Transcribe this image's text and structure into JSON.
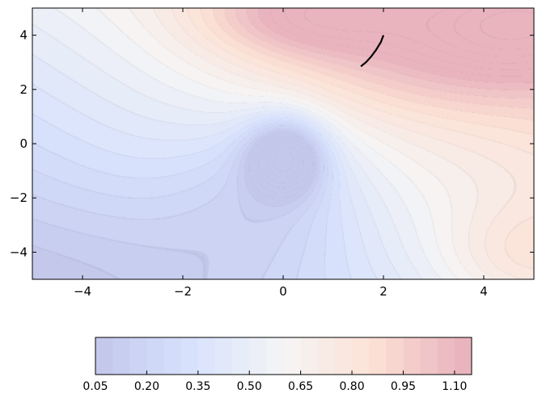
{
  "chart_data": {
    "type": "heatmap",
    "subtype": "filled-contour",
    "colormap": "coolwarm",
    "title": "",
    "xlabel": "",
    "ylabel": "",
    "xlim": [
      -5,
      5
    ],
    "ylim": [
      -5,
      5
    ],
    "x_ticks": [
      {
        "value": -4,
        "label": "−4"
      },
      {
        "value": -2,
        "label": "−2"
      },
      {
        "value": 0,
        "label": "0"
      },
      {
        "value": 2,
        "label": "2"
      },
      {
        "value": 4,
        "label": "4"
      }
    ],
    "y_ticks": [
      {
        "value": 4,
        "label": "4"
      },
      {
        "value": 2,
        "label": "2"
      },
      {
        "value": 0,
        "label": "0"
      },
      {
        "value": -2,
        "label": "−2"
      },
      {
        "value": -4,
        "label": "−4"
      }
    ],
    "grid": false,
    "surface": {
      "description_values": "smooth surface with minimum ~0.05 near (0,-0.4) and maxima ~1.1 near (0.5,4.5) and (4.5,4.3)",
      "min_value": 0.05,
      "min_location": [
        0.05,
        -0.4
      ],
      "max_value": 1.1,
      "max_locations": [
        [
          0.5,
          4.6
        ],
        [
          4.5,
          4.3
        ],
        [
          4.8,
          -4.0
        ]
      ]
    },
    "trajectory": {
      "color": "#000000",
      "points": [
        [
          1.55,
          2.85
        ],
        [
          1.65,
          3.0
        ],
        [
          1.75,
          3.2
        ],
        [
          1.85,
          3.45
        ],
        [
          1.95,
          3.75
        ],
        [
          2.0,
          4.0
        ]
      ]
    },
    "colorbar": {
      "orientation": "horizontal",
      "levels_min": 0.05,
      "levels_max": 1.15,
      "level_step": 0.05,
      "tick_values": [
        0.05,
        0.2,
        0.35,
        0.5,
        0.65,
        0.8,
        0.95,
        1.1
      ],
      "tick_labels": [
        "0.05",
        "0.20",
        "0.35",
        "0.50",
        "0.65",
        "0.80",
        "0.95",
        "1.10"
      ]
    },
    "colors": {
      "low": "#3b4cc0",
      "mid": "#dddddd",
      "high": "#b40426"
    }
  }
}
